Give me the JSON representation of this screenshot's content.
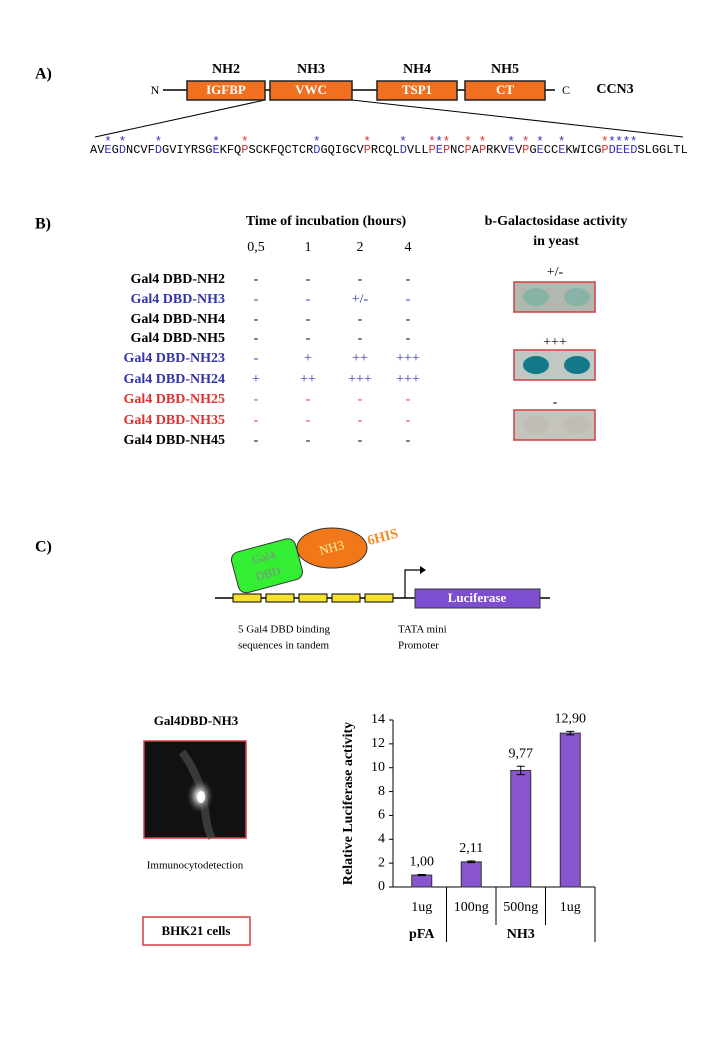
{
  "panel_a": {
    "label": "A)",
    "n_term": "N",
    "c_term": "C",
    "protein": "CCN3",
    "domains": [
      {
        "name": "NH2",
        "label": "IGFBP"
      },
      {
        "name": "NH3",
        "label": "VWC"
      },
      {
        "name": "NH4",
        "label": "TSP1"
      },
      {
        "name": "NH5",
        "label": "CT"
      }
    ],
    "sequence": {
      "marker": "*",
      "segments": [
        {
          "text": "AV"
        },
        {
          "text": "E",
          "color": "#3030c0"
        },
        {
          "text": "G"
        },
        {
          "text": "D",
          "color": "#3030c0"
        },
        {
          "text": "NCVF"
        },
        {
          "text": "D",
          "color": "#3030c0"
        },
        {
          "text": "GVIYRSG"
        },
        {
          "text": "E",
          "color": "#3030c0"
        },
        {
          "text": "KFQ"
        },
        {
          "text": "P",
          "color": "#e03030"
        },
        {
          "text": "SCKFQCTCR"
        },
        {
          "text": "D",
          "color": "#3030c0"
        },
        {
          "text": "GQIGCV"
        },
        {
          "text": "P",
          "color": "#e03030"
        },
        {
          "text": "RCQL"
        },
        {
          "text": "D",
          "color": "#3030c0"
        },
        {
          "text": "VLL"
        },
        {
          "text": "P",
          "color": "#e03030"
        },
        {
          "text": "E",
          "color": "#3030c0"
        },
        {
          "text": "P",
          "color": "#e03030"
        },
        {
          "text": "NC"
        },
        {
          "text": "P",
          "color": "#e03030"
        },
        {
          "text": "A"
        },
        {
          "text": "P",
          "color": "#e03030"
        },
        {
          "text": "RKV"
        },
        {
          "text": "E",
          "color": "#3030c0"
        },
        {
          "text": "V"
        },
        {
          "text": "P",
          "color": "#e03030"
        },
        {
          "text": "G"
        },
        {
          "text": "E",
          "color": "#3030c0"
        },
        {
          "text": "CC"
        },
        {
          "text": "E",
          "color": "#3030c0"
        },
        {
          "text": "KWICG"
        },
        {
          "text": "P",
          "color": "#e03030"
        },
        {
          "text": "DEED",
          "color": "#3030c0"
        },
        {
          "text": "SLGGLTL"
        }
      ]
    }
  },
  "panel_b": {
    "label": "B)",
    "time_title": "Time of incubation (hours)",
    "times": [
      "0,5",
      "1",
      "2",
      "4"
    ],
    "rows": [
      {
        "name": "Gal4 DBD-NH2",
        "color": "#000000",
        "values": [
          "-",
          "-",
          "-",
          "-"
        ]
      },
      {
        "name": "Gal4 DBD-NH3",
        "color": "#3333aa",
        "values": [
          "-",
          "-",
          "+/-",
          "-"
        ]
      },
      {
        "name": "Gal4 DBD-NH4",
        "color": "#000000",
        "values": [
          "-",
          "-",
          "-",
          "-"
        ]
      },
      {
        "name": "Gal4 DBD-NH5",
        "color": "#000000",
        "values": [
          "-",
          "-",
          "-",
          "-"
        ]
      },
      {
        "name": "Gal4 DBD-NH23",
        "color": "#3333aa",
        "values": [
          "-",
          "+",
          "++",
          "+++"
        ]
      },
      {
        "name": "Gal4 DBD-NH24",
        "color": "#3333aa",
        "values": [
          "+",
          "++",
          "+++",
          "+++"
        ]
      },
      {
        "name": "Gal4 DBD-NH25",
        "color": "#e03030",
        "values": [
          "-",
          "-",
          "-",
          "-"
        ]
      },
      {
        "name": "Gal4 DBD-NH35",
        "color": "#e03030",
        "values": [
          "-",
          "-",
          "-",
          "-"
        ]
      },
      {
        "name": "Gal4 DBD-NH45",
        "color": "#000000",
        "values": [
          "-",
          "-",
          "-",
          "-"
        ]
      }
    ],
    "activity_title": [
      "b-Galactosidase activity",
      "in yeast"
    ],
    "yeast_results": [
      "+/-",
      "+++",
      "-"
    ]
  },
  "panel_c": {
    "label": "C)",
    "gal4": [
      "Gal4",
      "DBD"
    ],
    "fusion": "NH3",
    "tag": "6HIS",
    "reporter": "Luciferase",
    "binding_caption": [
      "5 Gal4 DBD binding",
      "sequences in tandem"
    ],
    "promoter_caption": [
      "TATA mini",
      "Promoter"
    ],
    "image_title": "Gal4DBD-NH3",
    "image_caption": "Immunocytodetection",
    "cells": "BHK21 cells"
  },
  "chart_data": {
    "type": "bar",
    "ylabel": "Relative Luciferase activity",
    "categories": [
      "1ug",
      "100ng",
      "500ng",
      "1ug"
    ],
    "category_groups": [
      "pFA",
      "NH3",
      "NH3",
      "NH3"
    ],
    "values": [
      1.0,
      2.11,
      9.77,
      12.9
    ],
    "value_labels": [
      "1,00",
      "2,11",
      "9,77",
      "12,90"
    ],
    "errors": [
      0.05,
      0.07,
      0.35,
      0.15
    ],
    "color": "#8855cc",
    "ylim": [
      0,
      14
    ],
    "yticks": [
      0,
      2,
      4,
      6,
      8,
      10,
      12,
      14
    ]
  }
}
